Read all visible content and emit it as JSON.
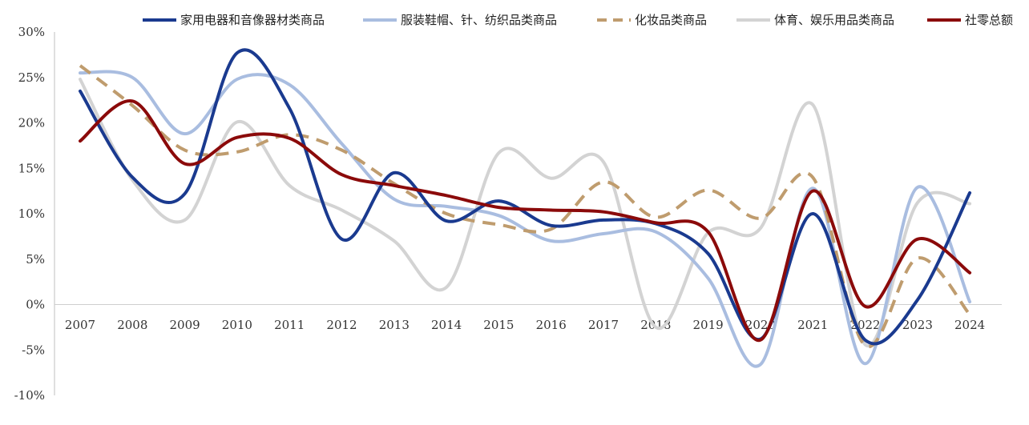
{
  "chart_data": {
    "type": "line",
    "title": "",
    "xlabel": "",
    "ylabel": "",
    "x": [
      "2007",
      "2008",
      "2009",
      "2010",
      "2011",
      "2012",
      "2013",
      "2014",
      "2015",
      "2016",
      "2017",
      "2018",
      "2019",
      "2020",
      "2021",
      "2022",
      "2023",
      "2024"
    ],
    "y_ticks": [
      "30%",
      "25%",
      "20%",
      "15%",
      "10%",
      "5%",
      "0%",
      "-5%",
      "-10%"
    ],
    "ylim": [
      -10,
      30
    ],
    "smooth": true,
    "grid": false,
    "legend_position": "top",
    "series": [
      {
        "name": "家用电器和音像器材类商品",
        "color": "#1a3a8f",
        "dash": false,
        "values": [
          23.5,
          14.0,
          12.2,
          27.7,
          21.6,
          7.2,
          14.5,
          9.2,
          11.4,
          8.7,
          9.3,
          8.9,
          5.6,
          -3.8,
          10.0,
          -3.9,
          0.5,
          12.3
        ]
      },
      {
        "name": "服装鞋帽、针、纺织品类商品",
        "color": "#a9bde0",
        "dash": false,
        "values": [
          25.5,
          25.0,
          18.8,
          24.8,
          24.2,
          17.7,
          11.6,
          10.8,
          9.8,
          7.0,
          7.8,
          8.0,
          2.9,
          -6.6,
          12.8,
          -6.5,
          12.9,
          0.3
        ]
      },
      {
        "name": "化妆品类商品",
        "color": "#bf9c6e",
        "dash": true,
        "values": [
          26.3,
          21.9,
          17.0,
          16.8,
          18.7,
          17.0,
          13.3,
          10.0,
          8.8,
          8.3,
          13.5,
          9.6,
          12.6,
          9.5,
          14.0,
          -4.5,
          5.1,
          -1.1
        ]
      },
      {
        "name": "体育、娱乐用品类商品",
        "color": "#d3d3d3",
        "dash": false,
        "values": [
          24.8,
          13.7,
          9.3,
          20.1,
          13.1,
          10.4,
          7.0,
          1.9,
          16.7,
          13.9,
          15.7,
          -2.5,
          7.9,
          8.4,
          22.0,
          -4.4,
          11.2,
          11.1
        ]
      },
      {
        "name": "社零总额",
        "color": "#8b0a0a",
        "dash": false,
        "values": [
          18.0,
          22.4,
          15.5,
          18.4,
          18.3,
          14.3,
          13.1,
          12.0,
          10.7,
          10.4,
          10.2,
          9.0,
          8.0,
          -3.9,
          12.5,
          -0.2,
          7.2,
          3.5
        ]
      }
    ]
  }
}
